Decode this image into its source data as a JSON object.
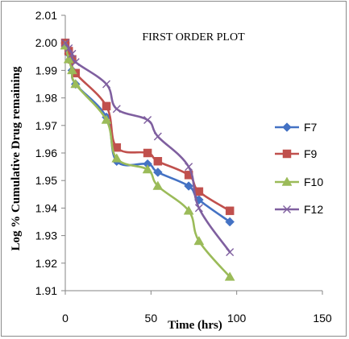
{
  "chart_data": {
    "type": "line",
    "title": "FIRST ORDER PLOT",
    "xlabel": "Time (hrs)",
    "ylabel": "Log % Cumulative Drug remaining",
    "xlim": [
      0,
      150
    ],
    "ylim": [
      1.91,
      2.01
    ],
    "xticks": [
      0,
      50,
      100,
      150
    ],
    "yticks": [
      1.91,
      1.92,
      1.93,
      1.94,
      1.95,
      1.96,
      1.97,
      1.98,
      1.99,
      2.0,
      2.01
    ],
    "legend": "right",
    "grid": false,
    "series": [
      {
        "name": "F7",
        "color": "#4472c4",
        "marker": "diamond",
        "x": [
          0,
          2,
          4,
          6,
          24,
          30,
          48,
          54,
          72,
          78,
          96
        ],
        "y": [
          2.0,
          1.996,
          1.99,
          1.985,
          1.973,
          1.957,
          1.956,
          1.953,
          1.948,
          1.943,
          1.935
        ]
      },
      {
        "name": "F9",
        "color": "#c0504d",
        "marker": "square",
        "x": [
          0,
          2,
          4,
          6,
          24,
          30,
          48,
          54,
          72,
          78,
          96
        ],
        "y": [
          2.0,
          1.997,
          1.994,
          1.989,
          1.977,
          1.962,
          1.96,
          1.957,
          1.952,
          1.946,
          1.939
        ]
      },
      {
        "name": "F10",
        "color": "#9bbb59",
        "marker": "triangle",
        "x": [
          0,
          2,
          4,
          6,
          24,
          30,
          48,
          54,
          72,
          78,
          96
        ],
        "y": [
          1.999,
          1.994,
          1.99,
          1.985,
          1.972,
          1.958,
          1.954,
          1.948,
          1.939,
          1.928,
          1.915
        ]
      },
      {
        "name": "F12",
        "color": "#7f5f9f",
        "marker": "x",
        "x": [
          0,
          2,
          4,
          6,
          24,
          30,
          48,
          54,
          72,
          78,
          96
        ],
        "y": [
          2.0,
          1.998,
          1.996,
          1.993,
          1.985,
          1.976,
          1.972,
          1.966,
          1.955,
          1.94,
          1.924
        ]
      }
    ]
  }
}
